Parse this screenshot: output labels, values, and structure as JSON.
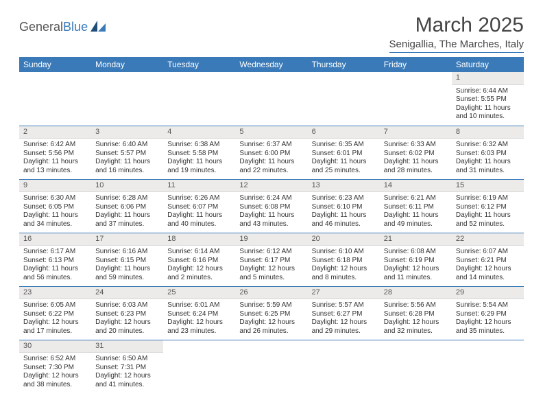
{
  "logo": {
    "text1": "General",
    "text2": "Blue"
  },
  "title": "March 2025",
  "location": "Senigallia, The Marches, Italy",
  "colors": {
    "brand": "#3a7ab8",
    "headerBg": "#3a7ab8",
    "dayBg": "#ecebea"
  },
  "dayHeaders": [
    "Sunday",
    "Monday",
    "Tuesday",
    "Wednesday",
    "Thursday",
    "Friday",
    "Saturday"
  ],
  "weeks": [
    [
      {
        "empty": true
      },
      {
        "empty": true
      },
      {
        "empty": true
      },
      {
        "empty": true
      },
      {
        "empty": true
      },
      {
        "empty": true
      },
      {
        "num": "1",
        "sunrise": "Sunrise: 6:44 AM",
        "sunset": "Sunset: 5:55 PM",
        "daylight": "Daylight: 11 hours and 10 minutes."
      }
    ],
    [
      {
        "num": "2",
        "sunrise": "Sunrise: 6:42 AM",
        "sunset": "Sunset: 5:56 PM",
        "daylight": "Daylight: 11 hours and 13 minutes."
      },
      {
        "num": "3",
        "sunrise": "Sunrise: 6:40 AM",
        "sunset": "Sunset: 5:57 PM",
        "daylight": "Daylight: 11 hours and 16 minutes."
      },
      {
        "num": "4",
        "sunrise": "Sunrise: 6:38 AM",
        "sunset": "Sunset: 5:58 PM",
        "daylight": "Daylight: 11 hours and 19 minutes."
      },
      {
        "num": "5",
        "sunrise": "Sunrise: 6:37 AM",
        "sunset": "Sunset: 6:00 PM",
        "daylight": "Daylight: 11 hours and 22 minutes."
      },
      {
        "num": "6",
        "sunrise": "Sunrise: 6:35 AM",
        "sunset": "Sunset: 6:01 PM",
        "daylight": "Daylight: 11 hours and 25 minutes."
      },
      {
        "num": "7",
        "sunrise": "Sunrise: 6:33 AM",
        "sunset": "Sunset: 6:02 PM",
        "daylight": "Daylight: 11 hours and 28 minutes."
      },
      {
        "num": "8",
        "sunrise": "Sunrise: 6:32 AM",
        "sunset": "Sunset: 6:03 PM",
        "daylight": "Daylight: 11 hours and 31 minutes."
      }
    ],
    [
      {
        "num": "9",
        "sunrise": "Sunrise: 6:30 AM",
        "sunset": "Sunset: 6:05 PM",
        "daylight": "Daylight: 11 hours and 34 minutes."
      },
      {
        "num": "10",
        "sunrise": "Sunrise: 6:28 AM",
        "sunset": "Sunset: 6:06 PM",
        "daylight": "Daylight: 11 hours and 37 minutes."
      },
      {
        "num": "11",
        "sunrise": "Sunrise: 6:26 AM",
        "sunset": "Sunset: 6:07 PM",
        "daylight": "Daylight: 11 hours and 40 minutes."
      },
      {
        "num": "12",
        "sunrise": "Sunrise: 6:24 AM",
        "sunset": "Sunset: 6:08 PM",
        "daylight": "Daylight: 11 hours and 43 minutes."
      },
      {
        "num": "13",
        "sunrise": "Sunrise: 6:23 AM",
        "sunset": "Sunset: 6:10 PM",
        "daylight": "Daylight: 11 hours and 46 minutes."
      },
      {
        "num": "14",
        "sunrise": "Sunrise: 6:21 AM",
        "sunset": "Sunset: 6:11 PM",
        "daylight": "Daylight: 11 hours and 49 minutes."
      },
      {
        "num": "15",
        "sunrise": "Sunrise: 6:19 AM",
        "sunset": "Sunset: 6:12 PM",
        "daylight": "Daylight: 11 hours and 52 minutes."
      }
    ],
    [
      {
        "num": "16",
        "sunrise": "Sunrise: 6:17 AM",
        "sunset": "Sunset: 6:13 PM",
        "daylight": "Daylight: 11 hours and 56 minutes."
      },
      {
        "num": "17",
        "sunrise": "Sunrise: 6:16 AM",
        "sunset": "Sunset: 6:15 PM",
        "daylight": "Daylight: 11 hours and 59 minutes."
      },
      {
        "num": "18",
        "sunrise": "Sunrise: 6:14 AM",
        "sunset": "Sunset: 6:16 PM",
        "daylight": "Daylight: 12 hours and 2 minutes."
      },
      {
        "num": "19",
        "sunrise": "Sunrise: 6:12 AM",
        "sunset": "Sunset: 6:17 PM",
        "daylight": "Daylight: 12 hours and 5 minutes."
      },
      {
        "num": "20",
        "sunrise": "Sunrise: 6:10 AM",
        "sunset": "Sunset: 6:18 PM",
        "daylight": "Daylight: 12 hours and 8 minutes."
      },
      {
        "num": "21",
        "sunrise": "Sunrise: 6:08 AM",
        "sunset": "Sunset: 6:19 PM",
        "daylight": "Daylight: 12 hours and 11 minutes."
      },
      {
        "num": "22",
        "sunrise": "Sunrise: 6:07 AM",
        "sunset": "Sunset: 6:21 PM",
        "daylight": "Daylight: 12 hours and 14 minutes."
      }
    ],
    [
      {
        "num": "23",
        "sunrise": "Sunrise: 6:05 AM",
        "sunset": "Sunset: 6:22 PM",
        "daylight": "Daylight: 12 hours and 17 minutes."
      },
      {
        "num": "24",
        "sunrise": "Sunrise: 6:03 AM",
        "sunset": "Sunset: 6:23 PM",
        "daylight": "Daylight: 12 hours and 20 minutes."
      },
      {
        "num": "25",
        "sunrise": "Sunrise: 6:01 AM",
        "sunset": "Sunset: 6:24 PM",
        "daylight": "Daylight: 12 hours and 23 minutes."
      },
      {
        "num": "26",
        "sunrise": "Sunrise: 5:59 AM",
        "sunset": "Sunset: 6:25 PM",
        "daylight": "Daylight: 12 hours and 26 minutes."
      },
      {
        "num": "27",
        "sunrise": "Sunrise: 5:57 AM",
        "sunset": "Sunset: 6:27 PM",
        "daylight": "Daylight: 12 hours and 29 minutes."
      },
      {
        "num": "28",
        "sunrise": "Sunrise: 5:56 AM",
        "sunset": "Sunset: 6:28 PM",
        "daylight": "Daylight: 12 hours and 32 minutes."
      },
      {
        "num": "29",
        "sunrise": "Sunrise: 5:54 AM",
        "sunset": "Sunset: 6:29 PM",
        "daylight": "Daylight: 12 hours and 35 minutes."
      }
    ],
    [
      {
        "num": "30",
        "sunrise": "Sunrise: 6:52 AM",
        "sunset": "Sunset: 7:30 PM",
        "daylight": "Daylight: 12 hours and 38 minutes."
      },
      {
        "num": "31",
        "sunrise": "Sunrise: 6:50 AM",
        "sunset": "Sunset: 7:31 PM",
        "daylight": "Daylight: 12 hours and 41 minutes."
      },
      {
        "empty": true
      },
      {
        "empty": true
      },
      {
        "empty": true
      },
      {
        "empty": true
      },
      {
        "empty": true
      }
    ]
  ]
}
